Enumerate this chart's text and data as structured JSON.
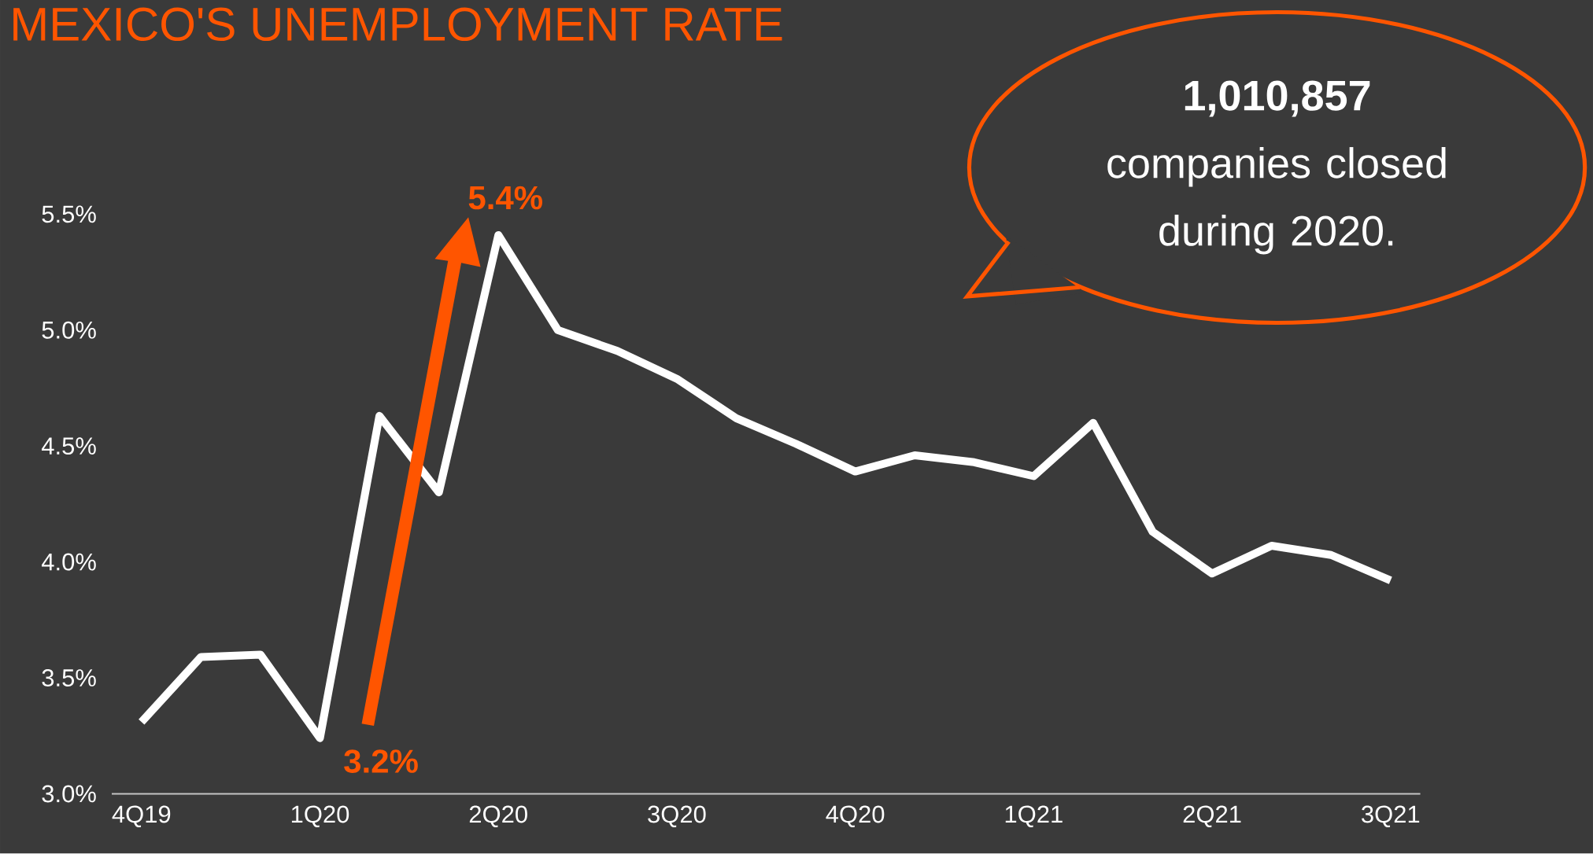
{
  "chart_data": {
    "type": "line",
    "title": "MEXICO'S UNEMPLOYMENT RATE",
    "categories": [
      "4Q19",
      null,
      null,
      "1Q20",
      null,
      null,
      "2Q20",
      null,
      null,
      "3Q20",
      null,
      null,
      "4Q20",
      null,
      null,
      "1Q21",
      null,
      null,
      "2Q21",
      null,
      null,
      "3Q21"
    ],
    "series": [
      {
        "color": "#ffffff",
        "values": [
          3.31,
          3.59,
          3.6,
          3.24,
          4.63,
          4.3,
          5.41,
          5.0,
          4.91,
          4.79,
          4.62,
          4.51,
          4.39,
          4.46,
          4.43,
          4.37,
          4.6,
          4.13,
          3.95,
          4.07,
          4.03,
          3.92
        ]
      }
    ],
    "ylim": [
      3.0,
      5.5
    ],
    "yticks": [
      {
        "value": 3.0,
        "label": "3.0%"
      },
      {
        "value": 3.5,
        "label": "3.5%"
      },
      {
        "value": 4.0,
        "label": "4.0%"
      },
      {
        "value": 4.5,
        "label": "4.5%"
      },
      {
        "value": 5.0,
        "label": "5.0%"
      },
      {
        "value": 5.5,
        "label": "5.5%"
      }
    ],
    "annotations": [
      {
        "text": "5.4%",
        "x": "2Q20",
        "y": 5.4
      },
      "3.2%",
      "**1,010,857** companies closed during 2020."
    ]
  }
}
